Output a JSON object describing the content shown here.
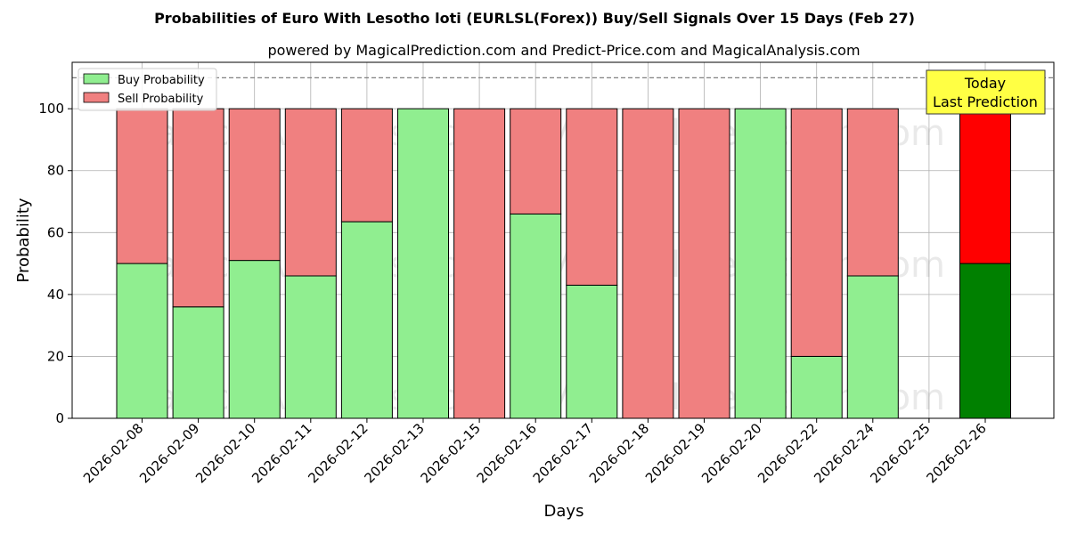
{
  "chart_data": {
    "type": "bar",
    "stacked": true,
    "title": "Probabilities of Euro With Lesotho loti (EURLSL(Forex)) Buy/Sell Signals Over 15 Days (Feb 27)",
    "subtitle": "powered by MagicalPrediction.com and Predict-Price.com and MagicalAnalysis.com",
    "xlabel": "Days",
    "ylabel": "Probability",
    "ylim": [
      0,
      115
    ],
    "yticks": [
      0,
      20,
      40,
      60,
      80,
      100
    ],
    "grid": true,
    "legend_position": "top-left",
    "reference_line": {
      "y": 110,
      "style": "dashed",
      "color": "#808080"
    },
    "categories": [
      "2026-02-08",
      "2026-02-09",
      "2026-02-10",
      "2026-02-11",
      "2026-02-12",
      "2026-02-13",
      "2026-02-15",
      "2026-02-16",
      "2026-02-17",
      "2026-02-18",
      "2026-02-19",
      "2026-02-20",
      "2026-02-22",
      "2026-02-24",
      "2026-02-25",
      "2026-02-26"
    ],
    "series": [
      {
        "name": "Buy Probability",
        "color": "#90ee90",
        "values": [
          50,
          36,
          51,
          46,
          63.5,
          100,
          0,
          66,
          43,
          0,
          0,
          100,
          20,
          46,
          null,
          50
        ]
      },
      {
        "name": "Sell Probability",
        "color": "#f08080",
        "values": [
          50,
          64,
          49,
          54,
          36.5,
          0,
          100,
          34,
          57,
          100,
          100,
          0,
          80,
          54,
          null,
          50
        ]
      }
    ],
    "highlight": {
      "category": "2026-02-26",
      "buy_color": "#008000",
      "sell_color": "#ff0000"
    },
    "annotation": {
      "lines": [
        "Today",
        "Last Prediction"
      ],
      "background": "#ffff44"
    },
    "watermarks": [
      "MagicalAnalysis.com",
      "MagicalPrediction.com"
    ]
  }
}
